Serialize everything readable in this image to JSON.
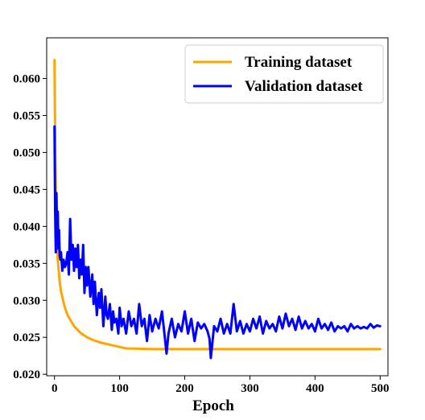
{
  "chart_data": {
    "type": "line",
    "xlabel": "Epoch",
    "ylabel": "",
    "xlim": [
      -12,
      512
    ],
    "ylim": [
      0.0198,
      0.0655
    ],
    "xticks": [
      0,
      100,
      200,
      300,
      400,
      500
    ],
    "yticks": [
      0.02,
      0.025,
      0.03,
      0.035,
      0.04,
      0.045,
      0.05,
      0.055,
      0.06
    ],
    "xtick_labels": [
      "0",
      "100",
      "200",
      "300",
      "400",
      "500"
    ],
    "ytick_labels": [
      "0.020",
      "0.025",
      "0.030",
      "0.035",
      "0.040",
      "0.045",
      "0.050",
      "0.055",
      "0.060"
    ],
    "grid": false,
    "legend_position": "top-right",
    "series": [
      {
        "name": "Training dataset",
        "color": "#FFA500",
        "x": [
          0,
          1,
          2,
          3,
          5,
          8,
          10,
          15,
          20,
          30,
          40,
          50,
          60,
          70,
          80,
          90,
          100,
          110,
          150,
          200,
          300,
          400,
          500
        ],
        "y": [
          0.0625,
          0.052,
          0.045,
          0.039,
          0.0355,
          0.0325,
          0.0312,
          0.0293,
          0.028,
          0.0265,
          0.0256,
          0.025,
          0.0246,
          0.0243,
          0.0241,
          0.0239,
          0.0237,
          0.0235,
          0.0234,
          0.0234,
          0.0234,
          0.0234,
          0.0234
        ]
      },
      {
        "name": "Validation dataset",
        "color": "#0000FF",
        "x": [
          0,
          1,
          2,
          3,
          4,
          5,
          6,
          7,
          8,
          9,
          10,
          12,
          14,
          16,
          18,
          20,
          22,
          24,
          26,
          28,
          30,
          32,
          34,
          36,
          38,
          40,
          42,
          44,
          46,
          48,
          50,
          52,
          55,
          58,
          60,
          62,
          65,
          68,
          70,
          72,
          75,
          78,
          80,
          82,
          85,
          88,
          90,
          92,
          95,
          98,
          100,
          103,
          106,
          110,
          114,
          118,
          122,
          126,
          130,
          134,
          138,
          142,
          146,
          150,
          155,
          160,
          165,
          170,
          172,
          175,
          180,
          185,
          190,
          195,
          200,
          205,
          210,
          215,
          220,
          225,
          230,
          235,
          238,
          240,
          245,
          250,
          255,
          260,
          265,
          270,
          275,
          280,
          285,
          290,
          295,
          300,
          305,
          310,
          315,
          320,
          325,
          330,
          335,
          340,
          345,
          350,
          355,
          360,
          365,
          370,
          375,
          380,
          385,
          390,
          395,
          400,
          405,
          410,
          415,
          420,
          425,
          430,
          435,
          440,
          445,
          450,
          455,
          460,
          465,
          470,
          475,
          480,
          485,
          490,
          495,
          500
        ],
        "y": [
          0.0535,
          0.042,
          0.0365,
          0.0445,
          0.0385,
          0.042,
          0.037,
          0.0395,
          0.036,
          0.0355,
          0.0365,
          0.034,
          0.0355,
          0.0345,
          0.035,
          0.0365,
          0.0335,
          0.041,
          0.0355,
          0.0375,
          0.034,
          0.037,
          0.0345,
          0.0375,
          0.033,
          0.0355,
          0.0335,
          0.0375,
          0.031,
          0.0345,
          0.032,
          0.0345,
          0.0305,
          0.0335,
          0.0295,
          0.0325,
          0.028,
          0.031,
          0.029,
          0.0315,
          0.0265,
          0.0305,
          0.028,
          0.0275,
          0.0295,
          0.026,
          0.0285,
          0.027,
          0.0275,
          0.0255,
          0.029,
          0.0265,
          0.0275,
          0.0255,
          0.0285,
          0.0265,
          0.0275,
          0.0255,
          0.0295,
          0.0265,
          0.0275,
          0.0245,
          0.028,
          0.0258,
          0.0275,
          0.0262,
          0.0285,
          0.0245,
          0.0228,
          0.0255,
          0.0275,
          0.025,
          0.0268,
          0.0258,
          0.0285,
          0.0255,
          0.0275,
          0.0245,
          0.027,
          0.0262,
          0.0268,
          0.0258,
          0.0248,
          0.0222,
          0.0265,
          0.0258,
          0.0275,
          0.0255,
          0.0268,
          0.0255,
          0.0295,
          0.0258,
          0.0272,
          0.0255,
          0.0268,
          0.0258,
          0.0275,
          0.0262,
          0.0278,
          0.0255,
          0.0272,
          0.0262,
          0.0268,
          0.0258,
          0.0278,
          0.0262,
          0.0282,
          0.0265,
          0.0275,
          0.026,
          0.0278,
          0.0262,
          0.0272,
          0.0262,
          0.0268,
          0.0258,
          0.0275,
          0.0262,
          0.0268,
          0.026,
          0.027,
          0.0258,
          0.0265,
          0.0262,
          0.0265,
          0.0258,
          0.0268,
          0.0262,
          0.0265,
          0.0262,
          0.0264,
          0.0262,
          0.0268,
          0.0263,
          0.0266,
          0.0265
        ]
      }
    ]
  }
}
